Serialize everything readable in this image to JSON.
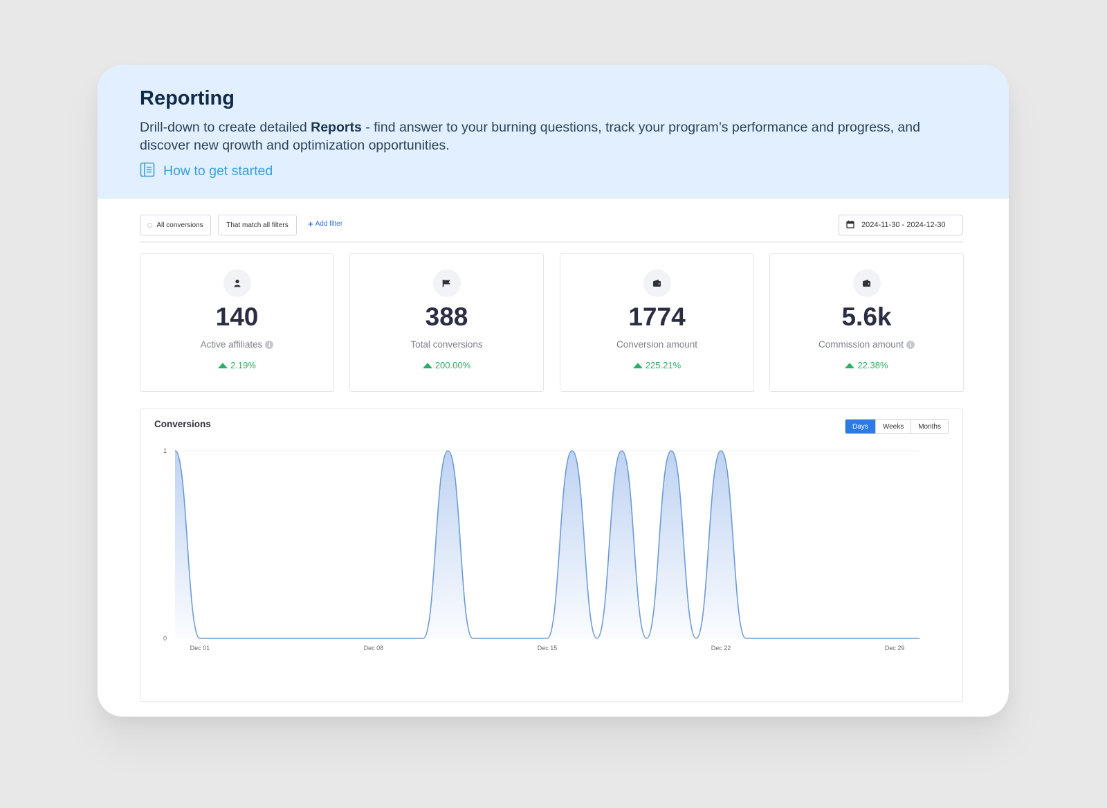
{
  "header": {
    "title": "Reporting",
    "desc_before": "Drill-down to create detailed ",
    "desc_bold": "Reports",
    "desc_after": " - find answer to your burning questions, track your program’s performance and progress, and discover new qrowth and optimization opportunities.",
    "link_label": "How to get started",
    "link_icon": "book-icon"
  },
  "filters": {
    "scope_label": "All conversions",
    "match_label": "That match all filters",
    "add_label": "Add filter",
    "date_range": "2024-11-30 - 2024-12-30"
  },
  "stats": [
    {
      "icon": "user-icon",
      "value": "140",
      "label": "Active affiliates",
      "info": true,
      "change": "2.19%"
    },
    {
      "icon": "flag-icon",
      "value": "388",
      "label": "Total conversions",
      "info": false,
      "change": "200.00%"
    },
    {
      "icon": "wallet-icon",
      "value": "1774",
      "label": "Conversion amount",
      "info": false,
      "change": "225.21%"
    },
    {
      "icon": "wallet-icon",
      "value": "5.6k",
      "label": "Commission amount",
      "info": true,
      "change": "22.38%"
    }
  ],
  "colors": {
    "accent": "#2c7be5",
    "positive": "#2bb067",
    "hero_bg": "#e1effe",
    "series": "#6d9bd6"
  },
  "chart": {
    "title": "Conversions",
    "periods": [
      "Days",
      "Weeks",
      "Months"
    ],
    "active_period": "Days"
  },
  "chart_data": {
    "type": "area",
    "title": "Conversions",
    "xlabel": "",
    "ylabel": "",
    "ylim": [
      0,
      1
    ],
    "yticks": [
      0,
      1
    ],
    "xticks": [
      "Dec 01",
      "Dec 08",
      "Dec 15",
      "Dec 22",
      "Dec 29"
    ],
    "x": [
      "Nov 30",
      "Dec 01",
      "Dec 02",
      "Dec 03",
      "Dec 04",
      "Dec 05",
      "Dec 06",
      "Dec 07",
      "Dec 08",
      "Dec 09",
      "Dec 10",
      "Dec 11",
      "Dec 12",
      "Dec 13",
      "Dec 14",
      "Dec 15",
      "Dec 16",
      "Dec 17",
      "Dec 18",
      "Dec 19",
      "Dec 20",
      "Dec 21",
      "Dec 22",
      "Dec 23",
      "Dec 24",
      "Dec 25",
      "Dec 26",
      "Dec 27",
      "Dec 28",
      "Dec 29",
      "Dec 30"
    ],
    "values": [
      1,
      0,
      0,
      0,
      0,
      0,
      0,
      0,
      0,
      0,
      0,
      1,
      0,
      0,
      0,
      0,
      1,
      0,
      1,
      0,
      1,
      0,
      1,
      0,
      0,
      0,
      0,
      0,
      0,
      0,
      0
    ],
    "grid": false,
    "legend": "none"
  }
}
